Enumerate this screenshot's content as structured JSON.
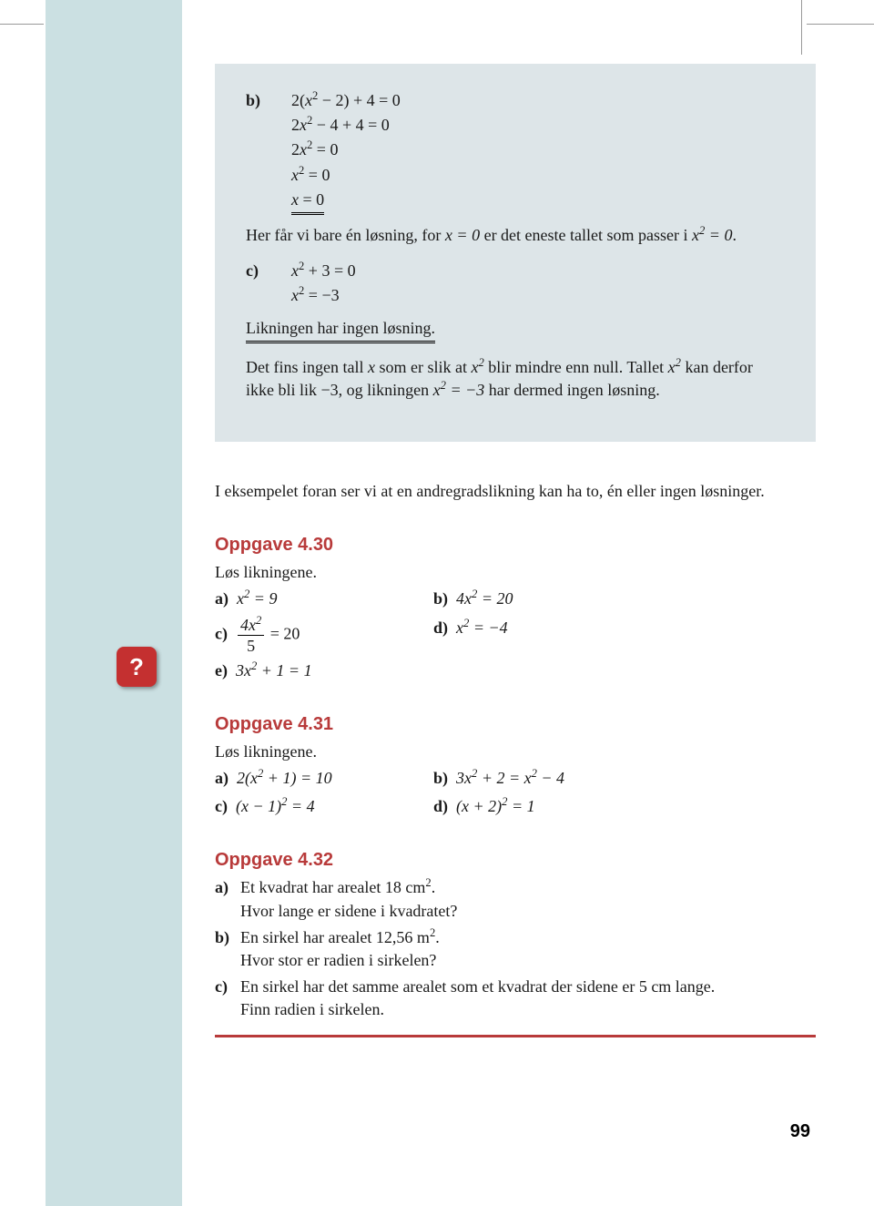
{
  "colors": {
    "sidebar_bg": "#cbe0e2",
    "example_bg": "#dde5e8",
    "accent_red": "#b83a3a",
    "help_bg": "#c43030",
    "text": "#1a1a1a",
    "rule_gray": "#999999"
  },
  "example": {
    "partB": {
      "label": "b)",
      "eq1": "2(x² − 2) + 4 = 0",
      "eq2": "2x² − 4 + 4 = 0",
      "eq3": "2x² = 0",
      "eq4": "x² = 0",
      "eq5": "x = 0",
      "text_pre": "Her får vi bare én løsning, for ",
      "text_mid1": "x = 0",
      "text_mid2": " er det eneste tallet som passer i ",
      "text_mid3": "x² = 0",
      "text_end": "."
    },
    "partC": {
      "label": "c)",
      "eq1": "x² + 3 = 0",
      "eq2": "x² = −3",
      "no_solution": "Likningen har ingen løsning.",
      "p_1": "Det fins ingen tall ",
      "p_x": "x",
      "p_2": " som er slik at ",
      "p_x2": "x²",
      "p_3": " blir mindre enn null. Tallet ",
      "p_4": " kan derfor ikke bli lik ",
      "p_neg3a": "−3,",
      "p_5": " og likningen ",
      "p_eq": "x² = −3",
      "p_6": " har dermed ingen løsning."
    }
  },
  "bridge_text": "I eksempelet foran ser vi at en andregradslikning kan ha to, én eller ingen løsninger.",
  "help_icon": "?",
  "oppgave430": {
    "title": "Oppgave 4.30",
    "instr": "Løs likningene.",
    "a_label": "a)",
    "a_eq": "x² = 9",
    "b_label": "b)",
    "b_eq": "4x² = 20",
    "c_label": "c)",
    "c_frac_num": "4x²",
    "c_frac_den": "5",
    "c_rhs": " = 20",
    "d_label": "d)",
    "d_eq": "x² = −4",
    "e_label": "e)",
    "e_eq": "3x² + 1 = 1"
  },
  "oppgave431": {
    "title": "Oppgave 4.31",
    "instr": "Løs likningene.",
    "a_label": "a)",
    "a_eq": "2(x² + 1) = 10",
    "b_label": "b)",
    "b_eq": "3x² + 2 = x² − 4",
    "c_label": "c)",
    "c_eq": "(x − 1)² = 4",
    "d_label": "d)",
    "d_eq": "(x + 2)² = 1"
  },
  "oppgave432": {
    "title": "Oppgave 4.32",
    "a_label": "a)",
    "a_line1_pre": "Et kvadrat har arealet 18 cm",
    "a_line1_sup": "2",
    "a_line1_post": ".",
    "a_line2": "Hvor lange er sidene i kvadratet?",
    "b_label": "b)",
    "b_line1_pre": "En sirkel har arealet 12,56 m",
    "b_line1_sup": "2",
    "b_line1_post": ".",
    "b_line2": "Hvor stor er radien i sirkelen?",
    "c_label": "c)",
    "c_line1": "En sirkel har det samme arealet som et kvadrat der sidene er 5 cm lange.",
    "c_line2": "Finn radien i sirkelen."
  },
  "page_number": "99"
}
